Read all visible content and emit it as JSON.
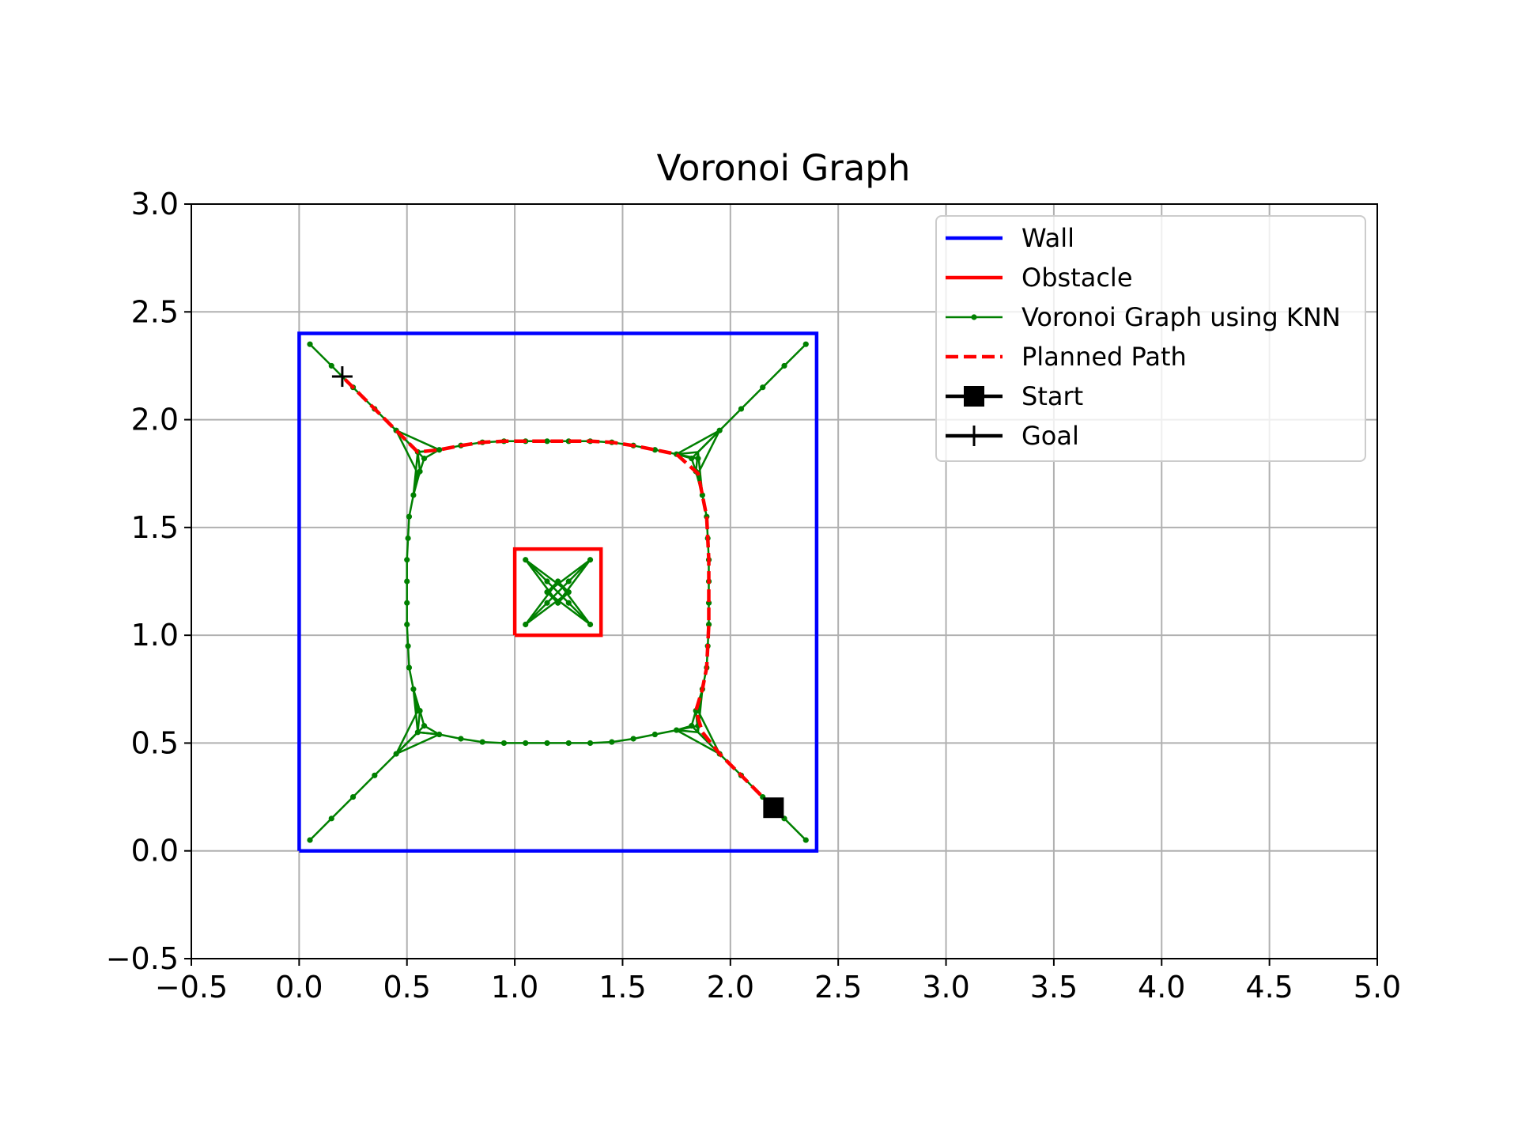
{
  "chart_data": {
    "type": "line",
    "title": "Voronoi Graph",
    "xlabel": "",
    "ylabel": "",
    "xlim": [
      -0.5,
      5.0
    ],
    "ylim": [
      -0.5,
      3.0
    ],
    "xticks": [
      -0.5,
      0.0,
      0.5,
      1.0,
      1.5,
      2.0,
      2.5,
      3.0,
      3.5,
      4.0,
      4.5,
      5.0
    ],
    "yticks": [
      -0.5,
      0.0,
      0.5,
      1.0,
      1.5,
      2.0,
      2.5,
      3.0
    ],
    "xtick_labels": [
      "−0.5",
      "0.0",
      "0.5",
      "1.0",
      "1.5",
      "2.0",
      "2.5",
      "3.0",
      "3.5",
      "4.0",
      "4.5",
      "5.0"
    ],
    "ytick_labels": [
      "−0.5",
      "0.0",
      "0.5",
      "1.0",
      "1.5",
      "2.0",
      "2.5",
      "3.0"
    ],
    "grid": true,
    "legend_position": "top-right",
    "legend": [
      "Wall",
      "Obstacle",
      "Voronoi Graph using KNN",
      "Planned Path",
      "Start",
      "Goal"
    ],
    "colors": {
      "wall": "#0000ff",
      "obstacle": "#ff0000",
      "graph": "#008000",
      "path": "#ff0000",
      "marker": "#000000",
      "grid": "#b0b0b0"
    },
    "wall": [
      [
        0,
        0
      ],
      [
        2.4,
        0
      ],
      [
        2.4,
        2.4
      ],
      [
        0,
        2.4
      ],
      [
        0,
        0
      ]
    ],
    "obstacle": [
      [
        1.0,
        1.0
      ],
      [
        1.4,
        1.0
      ],
      [
        1.4,
        1.4
      ],
      [
        1.0,
        1.4
      ],
      [
        1.0,
        1.0
      ]
    ],
    "graph_edges": [
      [
        [
          0.05,
          2.35
        ],
        [
          0.15,
          2.25
        ],
        [
          0.25,
          2.15
        ],
        [
          0.35,
          2.05
        ],
        [
          0.45,
          1.95
        ]
      ],
      [
        [
          2.35,
          2.35
        ],
        [
          2.25,
          2.25
        ],
        [
          2.15,
          2.15
        ],
        [
          2.05,
          2.05
        ],
        [
          1.95,
          1.95
        ]
      ],
      [
        [
          0.05,
          0.05
        ],
        [
          0.15,
          0.15
        ],
        [
          0.25,
          0.25
        ],
        [
          0.35,
          0.35
        ],
        [
          0.45,
          0.45
        ]
      ],
      [
        [
          2.35,
          0.05
        ],
        [
          2.25,
          0.15
        ],
        [
          2.15,
          0.25
        ],
        [
          2.05,
          0.35
        ],
        [
          1.95,
          0.45
        ]
      ],
      [
        [
          0.55,
          1.85
        ],
        [
          0.65,
          1.86
        ],
        [
          0.75,
          1.88
        ],
        [
          0.85,
          1.895
        ],
        [
          0.95,
          1.9
        ],
        [
          1.05,
          1.9
        ],
        [
          1.15,
          1.9
        ],
        [
          1.25,
          1.9
        ],
        [
          1.35,
          1.9
        ],
        [
          1.45,
          1.895
        ],
        [
          1.55,
          1.88
        ],
        [
          1.65,
          1.86
        ],
        [
          1.75,
          1.84
        ],
        [
          1.85,
          1.82
        ]
      ],
      [
        [
          0.55,
          0.55
        ],
        [
          0.65,
          0.54
        ],
        [
          0.75,
          0.52
        ],
        [
          0.85,
          0.505
        ],
        [
          0.95,
          0.5
        ],
        [
          1.05,
          0.5
        ],
        [
          1.15,
          0.5
        ],
        [
          1.25,
          0.5
        ],
        [
          1.35,
          0.5
        ],
        [
          1.45,
          0.505
        ],
        [
          1.55,
          0.52
        ],
        [
          1.65,
          0.54
        ],
        [
          1.75,
          0.56
        ],
        [
          1.85,
          0.58
        ]
      ],
      [
        [
          0.56,
          1.76
        ],
        [
          0.53,
          1.65
        ],
        [
          0.51,
          1.55
        ],
        [
          0.505,
          1.45
        ],
        [
          0.5,
          1.35
        ],
        [
          0.5,
          1.25
        ],
        [
          0.5,
          1.15
        ],
        [
          0.5,
          1.05
        ],
        [
          0.505,
          0.95
        ],
        [
          0.51,
          0.85
        ],
        [
          0.53,
          0.75
        ],
        [
          0.56,
          0.65
        ]
      ],
      [
        [
          1.84,
          1.76
        ],
        [
          1.87,
          1.65
        ],
        [
          1.89,
          1.55
        ],
        [
          1.895,
          1.45
        ],
        [
          1.9,
          1.35
        ],
        [
          1.9,
          1.25
        ],
        [
          1.9,
          1.15
        ],
        [
          1.9,
          1.05
        ],
        [
          1.895,
          0.95
        ],
        [
          1.89,
          0.85
        ],
        [
          1.87,
          0.75
        ],
        [
          1.84,
          0.65
        ]
      ],
      [
        [
          0.45,
          1.95
        ],
        [
          0.55,
          1.85
        ]
      ],
      [
        [
          0.45,
          1.95
        ],
        [
          0.58,
          1.82
        ]
      ],
      [
        [
          0.45,
          1.95
        ],
        [
          0.55,
          1.75
        ]
      ],
      [
        [
          0.45,
          1.95
        ],
        [
          0.65,
          1.86
        ]
      ],
      [
        [
          0.55,
          1.85
        ],
        [
          0.65,
          1.86
        ]
      ],
      [
        [
          0.55,
          1.85
        ],
        [
          0.56,
          1.76
        ]
      ],
      [
        [
          0.58,
          1.82
        ],
        [
          0.56,
          1.76
        ]
      ],
      [
        [
          0.58,
          1.82
        ],
        [
          0.65,
          1.86
        ]
      ],
      [
        [
          0.55,
          1.75
        ],
        [
          0.53,
          1.65
        ]
      ],
      [
        [
          0.55,
          1.85
        ],
        [
          0.53,
          1.65
        ]
      ],
      [
        [
          1.95,
          1.95
        ],
        [
          1.85,
          1.85
        ]
      ],
      [
        [
          1.95,
          1.95
        ],
        [
          1.82,
          1.82
        ]
      ],
      [
        [
          1.95,
          1.95
        ],
        [
          1.85,
          1.75
        ]
      ],
      [
        [
          1.95,
          1.95
        ],
        [
          1.75,
          1.84
        ]
      ],
      [
        [
          1.85,
          1.85
        ],
        [
          1.75,
          1.84
        ]
      ],
      [
        [
          1.85,
          1.85
        ],
        [
          1.84,
          1.76
        ]
      ],
      [
        [
          1.82,
          1.82
        ],
        [
          1.84,
          1.76
        ]
      ],
      [
        [
          1.82,
          1.82
        ],
        [
          1.75,
          1.84
        ]
      ],
      [
        [
          1.85,
          1.75
        ],
        [
          1.87,
          1.65
        ]
      ],
      [
        [
          1.85,
          1.85
        ],
        [
          1.87,
          1.65
        ]
      ],
      [
        [
          0.45,
          0.45
        ],
        [
          0.55,
          0.55
        ]
      ],
      [
        [
          0.45,
          0.45
        ],
        [
          0.58,
          0.58
        ]
      ],
      [
        [
          0.45,
          0.45
        ],
        [
          0.55,
          0.65
        ]
      ],
      [
        [
          0.45,
          0.45
        ],
        [
          0.65,
          0.54
        ]
      ],
      [
        [
          0.55,
          0.55
        ],
        [
          0.65,
          0.54
        ]
      ],
      [
        [
          0.55,
          0.55
        ],
        [
          0.56,
          0.65
        ]
      ],
      [
        [
          0.58,
          0.58
        ],
        [
          0.56,
          0.65
        ]
      ],
      [
        [
          0.58,
          0.58
        ],
        [
          0.65,
          0.54
        ]
      ],
      [
        [
          0.55,
          0.65
        ],
        [
          0.53,
          0.75
        ]
      ],
      [
        [
          0.55,
          0.55
        ],
        [
          0.53,
          0.75
        ]
      ],
      [
        [
          1.95,
          0.45
        ],
        [
          1.85,
          0.55
        ]
      ],
      [
        [
          1.95,
          0.45
        ],
        [
          1.82,
          0.58
        ]
      ],
      [
        [
          1.95,
          0.45
        ],
        [
          1.85,
          0.65
        ]
      ],
      [
        [
          1.95,
          0.45
        ],
        [
          1.75,
          0.56
        ]
      ],
      [
        [
          1.85,
          0.55
        ],
        [
          1.75,
          0.56
        ]
      ],
      [
        [
          1.85,
          0.55
        ],
        [
          1.84,
          0.65
        ]
      ],
      [
        [
          1.82,
          0.58
        ],
        [
          1.84,
          0.65
        ]
      ],
      [
        [
          1.82,
          0.58
        ],
        [
          1.75,
          0.56
        ]
      ],
      [
        [
          1.85,
          0.65
        ],
        [
          1.87,
          0.75
        ]
      ],
      [
        [
          1.85,
          0.55
        ],
        [
          1.87,
          0.75
        ]
      ],
      [
        [
          1.05,
          1.35
        ],
        [
          1.15,
          1.25
        ]
      ],
      [
        [
          1.15,
          1.25
        ],
        [
          1.25,
          1.15
        ]
      ],
      [
        [
          1.25,
          1.15
        ],
        [
          1.35,
          1.05
        ]
      ],
      [
        [
          1.35,
          1.35
        ],
        [
          1.25,
          1.25
        ]
      ],
      [
        [
          1.25,
          1.25
        ],
        [
          1.15,
          1.15
        ]
      ],
      [
        [
          1.15,
          1.15
        ],
        [
          1.05,
          1.05
        ]
      ],
      [
        [
          1.05,
          1.35
        ],
        [
          1.2,
          1.15
        ]
      ],
      [
        [
          1.05,
          1.35
        ],
        [
          1.25,
          1.2
        ]
      ],
      [
        [
          1.35,
          1.35
        ],
        [
          1.15,
          1.2
        ]
      ],
      [
        [
          1.35,
          1.35
        ],
        [
          1.2,
          1.15
        ]
      ],
      [
        [
          1.05,
          1.05
        ],
        [
          1.2,
          1.25
        ]
      ],
      [
        [
          1.05,
          1.05
        ],
        [
          1.25,
          1.2
        ]
      ],
      [
        [
          1.35,
          1.05
        ],
        [
          1.15,
          1.2
        ]
      ],
      [
        [
          1.35,
          1.05
        ],
        [
          1.2,
          1.25
        ]
      ],
      [
        [
          1.15,
          1.2
        ],
        [
          1.2,
          1.25
        ]
      ],
      [
        [
          1.2,
          1.25
        ],
        [
          1.25,
          1.2
        ]
      ],
      [
        [
          1.25,
          1.2
        ],
        [
          1.2,
          1.15
        ]
      ],
      [
        [
          1.2,
          1.15
        ],
        [
          1.15,
          1.2
        ]
      ]
    ],
    "graph_nodes": [
      [
        0.05,
        2.35
      ],
      [
        0.15,
        2.25
      ],
      [
        0.25,
        2.15
      ],
      [
        0.35,
        2.05
      ],
      [
        0.45,
        1.95
      ],
      [
        2.35,
        2.35
      ],
      [
        2.25,
        2.25
      ],
      [
        2.15,
        2.15
      ],
      [
        2.05,
        2.05
      ],
      [
        1.95,
        1.95
      ],
      [
        0.05,
        0.05
      ],
      [
        0.15,
        0.15
      ],
      [
        0.25,
        0.25
      ],
      [
        0.35,
        0.35
      ],
      [
        0.45,
        0.45
      ],
      [
        2.35,
        0.05
      ],
      [
        2.25,
        0.15
      ],
      [
        2.15,
        0.25
      ],
      [
        2.05,
        0.35
      ],
      [
        1.95,
        0.45
      ],
      [
        0.55,
        1.85
      ],
      [
        0.65,
        1.86
      ],
      [
        0.75,
        1.88
      ],
      [
        0.85,
        1.895
      ],
      [
        0.95,
        1.9
      ],
      [
        1.05,
        1.9
      ],
      [
        1.15,
        1.9
      ],
      [
        1.25,
        1.9
      ],
      [
        1.35,
        1.9
      ],
      [
        1.45,
        1.895
      ],
      [
        1.55,
        1.88
      ],
      [
        1.65,
        1.86
      ],
      [
        1.75,
        1.84
      ],
      [
        1.85,
        1.82
      ],
      [
        0.55,
        0.55
      ],
      [
        0.65,
        0.54
      ],
      [
        0.75,
        0.52
      ],
      [
        0.85,
        0.505
      ],
      [
        0.95,
        0.5
      ],
      [
        1.05,
        0.5
      ],
      [
        1.15,
        0.5
      ],
      [
        1.25,
        0.5
      ],
      [
        1.35,
        0.5
      ],
      [
        1.45,
        0.505
      ],
      [
        1.55,
        0.52
      ],
      [
        1.65,
        0.54
      ],
      [
        1.75,
        0.56
      ],
      [
        1.85,
        0.58
      ],
      [
        0.56,
        1.76
      ],
      [
        0.53,
        1.65
      ],
      [
        0.51,
        1.55
      ],
      [
        0.505,
        1.45
      ],
      [
        0.5,
        1.35
      ],
      [
        0.5,
        1.25
      ],
      [
        0.5,
        1.15
      ],
      [
        0.5,
        1.05
      ],
      [
        0.505,
        0.95
      ],
      [
        0.51,
        0.85
      ],
      [
        0.53,
        0.75
      ],
      [
        0.56,
        0.65
      ],
      [
        1.84,
        1.76
      ],
      [
        1.87,
        1.65
      ],
      [
        1.89,
        1.55
      ],
      [
        1.895,
        1.45
      ],
      [
        1.9,
        1.35
      ],
      [
        1.9,
        1.25
      ],
      [
        1.9,
        1.15
      ],
      [
        1.9,
        1.05
      ],
      [
        1.895,
        0.95
      ],
      [
        1.89,
        0.85
      ],
      [
        1.87,
        0.75
      ],
      [
        1.84,
        0.65
      ],
      [
        0.58,
        1.82
      ],
      [
        0.55,
        1.75
      ],
      [
        1.82,
        1.82
      ],
      [
        1.85,
        1.75
      ],
      [
        0.58,
        0.58
      ],
      [
        0.55,
        0.65
      ],
      [
        1.82,
        0.58
      ],
      [
        1.85,
        0.65
      ],
      [
        1.05,
        1.35
      ],
      [
        1.35,
        1.35
      ],
      [
        1.05,
        1.05
      ],
      [
        1.35,
        1.05
      ],
      [
        1.15,
        1.25
      ],
      [
        1.25,
        1.25
      ],
      [
        1.15,
        1.15
      ],
      [
        1.25,
        1.15
      ],
      [
        1.2,
        1.25
      ],
      [
        1.25,
        1.2
      ],
      [
        1.2,
        1.15
      ],
      [
        1.15,
        1.2
      ]
    ],
    "planned_path": [
      [
        2.2,
        0.2
      ],
      [
        2.15,
        0.25
      ],
      [
        2.05,
        0.35
      ],
      [
        1.95,
        0.45
      ],
      [
        1.87,
        0.55
      ],
      [
        1.84,
        0.65
      ],
      [
        1.87,
        0.75
      ],
      [
        1.89,
        0.85
      ],
      [
        1.895,
        0.95
      ],
      [
        1.9,
        1.05
      ],
      [
        1.9,
        1.15
      ],
      [
        1.9,
        1.25
      ],
      [
        1.9,
        1.35
      ],
      [
        1.895,
        1.45
      ],
      [
        1.89,
        1.55
      ],
      [
        1.87,
        1.65
      ],
      [
        1.85,
        1.75
      ],
      [
        1.75,
        1.84
      ],
      [
        1.65,
        1.86
      ],
      [
        1.55,
        1.88
      ],
      [
        1.45,
        1.895
      ],
      [
        1.35,
        1.9
      ],
      [
        1.25,
        1.9
      ],
      [
        1.15,
        1.9
      ],
      [
        1.05,
        1.9
      ],
      [
        0.95,
        1.9
      ],
      [
        0.85,
        1.895
      ],
      [
        0.75,
        1.88
      ],
      [
        0.65,
        1.86
      ],
      [
        0.55,
        1.85
      ],
      [
        0.45,
        1.95
      ],
      [
        0.35,
        2.05
      ],
      [
        0.25,
        2.15
      ],
      [
        0.2,
        2.2
      ]
    ],
    "start": [
      2.2,
      0.2
    ],
    "goal": [
      0.2,
      2.2
    ]
  }
}
